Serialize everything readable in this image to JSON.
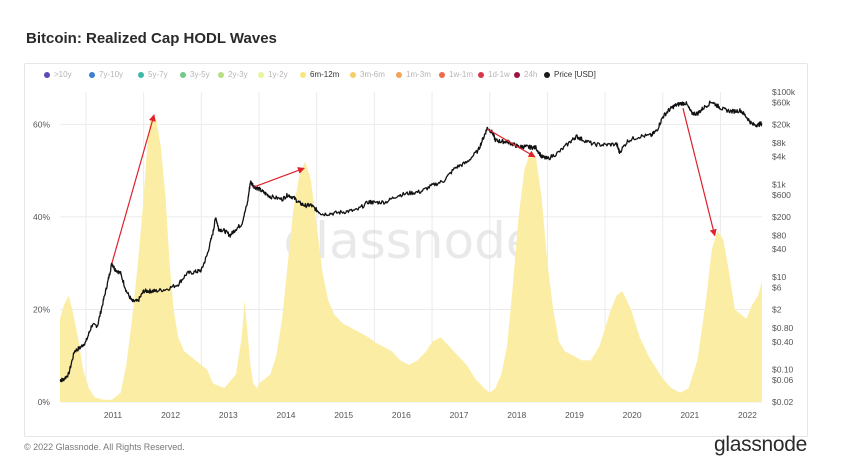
{
  "title": "Bitcoin: Realized Cap HODL Waves",
  "legend": [
    {
      "label": ">10y",
      "color": "#5b4bb5",
      "active": false
    },
    {
      "label": "7y-10y",
      "color": "#3d7fd0",
      "active": false
    },
    {
      "label": "5y-7y",
      "color": "#3cb8a8",
      "active": false
    },
    {
      "label": "3y-5y",
      "color": "#73c98a",
      "active": false
    },
    {
      "label": "2y-3y",
      "color": "#b8de86",
      "active": false
    },
    {
      "label": "1y-2y",
      "color": "#eaf3a0",
      "active": false
    },
    {
      "label": "6m-12m",
      "color": "#f7e780",
      "active": true
    },
    {
      "label": "3m-6m",
      "color": "#f6cf6d",
      "active": false
    },
    {
      "label": "1m-3m",
      "color": "#f3a35a",
      "active": false
    },
    {
      "label": "1w-1m",
      "color": "#ec6b4c",
      "active": false
    },
    {
      "label": "1d-1w",
      "color": "#d63a4a",
      "active": false
    },
    {
      "label": "24h",
      "color": "#9b1444",
      "active": false
    },
    {
      "label": "Price [USD]",
      "color": "#1a1a1a",
      "active": true
    }
  ],
  "watermark": "glassnode",
  "footer": {
    "copyright": "© 2022 Glassnode. All Rights Reserved.",
    "brand": "glassnode"
  },
  "colors": {
    "wave": "#fbeda4",
    "price": "#111111",
    "arrow": "#e0212b",
    "grid": "#ebebeb"
  },
  "chart_data": {
    "type": "area",
    "title": "Bitcoin: Realized Cap HODL Waves",
    "x_range": [
      2010.55,
      2022.72
    ],
    "x_ticks": [
      2011,
      2012,
      2013,
      2014,
      2015,
      2016,
      2017,
      2018,
      2019,
      2020,
      2021,
      2022
    ],
    "left_axis": {
      "ticks": [
        0,
        20,
        40,
        60
      ],
      "tick_labels": [
        "0%",
        "20%",
        "40%",
        "60%"
      ],
      "range": [
        0,
        67
      ]
    },
    "right_axis": {
      "scale": "log",
      "range": [
        0.02,
        100000
      ],
      "ticks": [
        0.02,
        0.06,
        0.1,
        0.4,
        0.8,
        2,
        6,
        10,
        40,
        80,
        200,
        600,
        1000,
        4000,
        8000,
        20000,
        60000,
        100000
      ],
      "tick_labels": [
        "$0.02",
        "$0.06",
        "$0.10",
        "$0.40",
        "$0.80",
        "$2",
        "$6",
        "$10",
        "$40",
        "$80",
        "$200",
        "$600",
        "$1k",
        "$4k",
        "$8k",
        "$20k",
        "$60k",
        "$100k"
      ]
    },
    "grid": true,
    "series": [
      {
        "name": "6m-12m",
        "axis": "left",
        "x": [
          2010.55,
          2010.62,
          2010.7,
          2010.78,
          2010.86,
          2010.95,
          2011.05,
          2011.15,
          2011.3,
          2011.45,
          2011.6,
          2011.7,
          2011.8,
          2011.9,
          2012.0,
          2012.05,
          2012.1,
          2012.15,
          2012.22,
          2012.3,
          2012.38,
          2012.45,
          2012.52,
          2012.6,
          2012.7,
          2012.8,
          2012.9,
          2013.0,
          2013.1,
          2013.2,
          2013.4,
          2013.6,
          2013.7,
          2013.75,
          2013.8,
          2013.85,
          2013.9,
          2013.96,
          2014.0,
          2014.1,
          2014.2,
          2014.3,
          2014.4,
          2014.5,
          2014.6,
          2014.7,
          2014.8,
          2014.9,
          2015.0,
          2015.1,
          2015.2,
          2015.3,
          2015.45,
          2015.6,
          2015.75,
          2015.9,
          2016.0,
          2016.15,
          2016.3,
          2016.45,
          2016.6,
          2016.75,
          2016.9,
          2017.0,
          2017.15,
          2017.3,
          2017.45,
          2017.6,
          2017.75,
          2017.9,
          2018.0,
          2018.1,
          2018.2,
          2018.3,
          2018.4,
          2018.5,
          2018.6,
          2018.7,
          2018.8,
          2018.9,
          2019.0,
          2019.1,
          2019.2,
          2019.3,
          2019.45,
          2019.6,
          2019.75,
          2019.9,
          2020.0,
          2020.1,
          2020.2,
          2020.3,
          2020.45,
          2020.6,
          2020.75,
          2020.9,
          2021.0,
          2021.15,
          2021.3,
          2021.45,
          2021.6,
          2021.75,
          2021.85,
          2021.95,
          2022.05,
          2022.15,
          2022.25,
          2022.35,
          2022.45,
          2022.55,
          2022.65,
          2022.72
        ],
        "values": [
          18,
          21,
          23,
          19,
          14,
          7,
          3,
          1,
          0.5,
          0.5,
          2,
          8,
          18,
          30,
          44,
          53,
          60,
          62,
          61,
          55,
          44,
          30,
          20,
          14,
          11,
          10,
          9,
          8,
          7,
          4,
          3,
          6,
          14,
          22,
          15,
          8,
          4,
          3,
          4,
          5,
          6,
          10,
          18,
          30,
          42,
          49,
          52,
          48,
          38,
          28,
          22,
          19,
          17,
          16,
          15,
          14,
          13,
          12,
          11,
          9,
          8,
          9,
          11,
          13,
          14,
          12,
          10,
          8,
          5,
          3,
          2,
          3,
          6,
          12,
          25,
          40,
          50,
          54,
          53,
          44,
          30,
          20,
          13,
          11,
          10,
          9,
          9,
          12,
          16,
          20,
          23,
          24,
          20,
          14,
          10,
          7,
          5,
          3,
          2,
          3,
          9,
          22,
          33,
          37,
          35,
          28,
          20,
          19,
          18,
          21,
          23,
          26
        ]
      },
      {
        "name": "Price [USD]",
        "axis": "right",
        "x": [
          2010.55,
          2010.6,
          2010.7,
          2010.8,
          2010.9,
          2011.0,
          2011.1,
          2011.2,
          2011.3,
          2011.38,
          2011.45,
          2011.5,
          2011.6,
          2011.7,
          2011.8,
          2011.9,
          2012.0,
          2012.1,
          2012.2,
          2012.4,
          2012.6,
          2012.75,
          2012.9,
          2013.0,
          2013.1,
          2013.2,
          2013.25,
          2013.3,
          2013.4,
          2013.5,
          2013.6,
          2013.7,
          2013.8,
          2013.85,
          2013.92,
          2014.0,
          2014.1,
          2014.2,
          2014.4,
          2014.5,
          2014.6,
          2014.7,
          2014.8,
          2014.9,
          2015.0,
          2015.1,
          2015.3,
          2015.5,
          2015.7,
          2015.9,
          2016.0,
          2016.2,
          2016.4,
          2016.6,
          2016.8,
          2017.0,
          2017.2,
          2017.4,
          2017.6,
          2017.8,
          2017.9,
          2017.96,
          2018.05,
          2018.1,
          2018.2,
          2018.3,
          2018.4,
          2018.5,
          2018.6,
          2018.7,
          2018.8,
          2018.9,
          2019.0,
          2019.2,
          2019.4,
          2019.5,
          2019.6,
          2019.8,
          2020.0,
          2020.2,
          2020.25,
          2020.4,
          2020.6,
          2020.8,
          2020.9,
          2021.0,
          2021.1,
          2021.2,
          2021.3,
          2021.4,
          2021.5,
          2021.6,
          2021.7,
          2021.85,
          2021.95,
          2022.05,
          2022.2,
          2022.35,
          2022.45,
          2022.55,
          2022.65,
          2022.72
        ],
        "values": [
          0.06,
          0.06,
          0.08,
          0.25,
          0.3,
          0.4,
          0.9,
          0.9,
          3,
          8,
          20,
          15,
          12,
          5,
          3,
          3,
          5,
          5,
          5,
          5.5,
          7,
          12,
          13,
          14,
          30,
          90,
          200,
          110,
          100,
          80,
          110,
          140,
          400,
          1150,
          900,
          800,
          650,
          550,
          480,
          600,
          520,
          400,
          350,
          360,
          280,
          230,
          240,
          260,
          280,
          420,
          410,
          420,
          580,
          650,
          700,
          950,
          1200,
          2300,
          3000,
          5500,
          11000,
          17000,
          13000,
          9000,
          8500,
          8500,
          7500,
          6500,
          6600,
          6400,
          6300,
          4000,
          3600,
          5000,
          8500,
          11000,
          9500,
          7400,
          7200,
          7500,
          5000,
          9000,
          11000,
          11500,
          15000,
          29000,
          40000,
          50000,
          56000,
          58000,
          35000,
          34000,
          45000,
          62000,
          50000,
          42000,
          38000,
          40000,
          29000,
          20000,
          19500,
          21000
        ]
      }
    ],
    "annotations": [
      {
        "type": "arrow",
        "from": [
          2011.45,
          30
        ],
        "to": [
          2012.18,
          62
        ]
      },
      {
        "type": "arrow",
        "from": [
          2013.92,
          46.5
        ],
        "to": [
          2014.78,
          50.5
        ]
      },
      {
        "type": "arrow",
        "from": [
          2017.96,
          59
        ],
        "to": [
          2018.78,
          53
        ]
      },
      {
        "type": "arrow",
        "from": [
          2021.35,
          63.5
        ],
        "to": [
          2021.9,
          36
        ]
      }
    ]
  }
}
